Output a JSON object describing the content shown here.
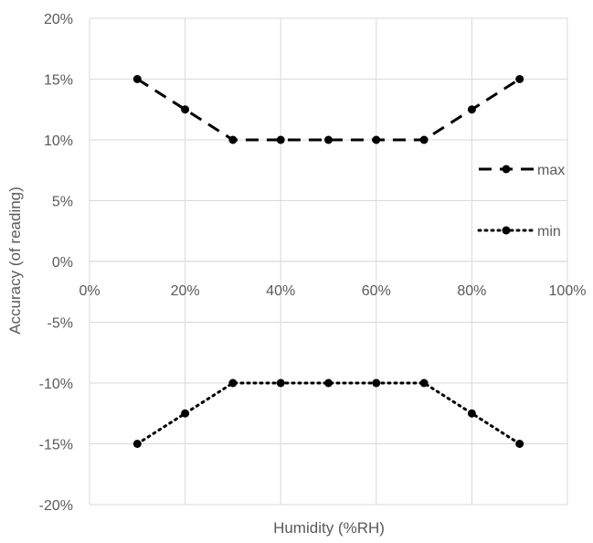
{
  "chart_data": {
    "type": "line",
    "title": "",
    "xlabel": "Humidity (%RH)",
    "ylabel": "Accuracy (of reading)",
    "xlim": [
      0,
      100
    ],
    "ylim": [
      -20,
      20
    ],
    "x_ticks": [
      0,
      20,
      40,
      60,
      80,
      100
    ],
    "y_ticks": [
      20,
      15,
      10,
      5,
      0,
      -5,
      -10,
      -15,
      -20
    ],
    "x_tick_labels": [
      "0%",
      "20%",
      "40%",
      "60%",
      "80%",
      "100%"
    ],
    "y_tick_labels": [
      "20%",
      "15%",
      "10%",
      "5%",
      "0%",
      "-5%",
      "-10%",
      "-15%",
      "-20%"
    ],
    "grid": true,
    "legend_position": "right",
    "x": [
      10,
      20,
      30,
      40,
      50,
      60,
      70,
      80,
      90
    ],
    "series": [
      {
        "name": "max",
        "values": [
          15,
          12.5,
          10,
          10,
          10,
          10,
          10,
          12.5,
          15
        ],
        "line_style": "dashed",
        "color": "#000000"
      },
      {
        "name": "min",
        "values": [
          -15,
          -12.5,
          -10,
          -10,
          -10,
          -10,
          -10,
          -12.5,
          -15
        ],
        "line_style": "dotted",
        "color": "#000000"
      }
    ],
    "colors": {
      "grid": "#d9d9d9",
      "text": "#595959",
      "series": "#000000"
    }
  }
}
